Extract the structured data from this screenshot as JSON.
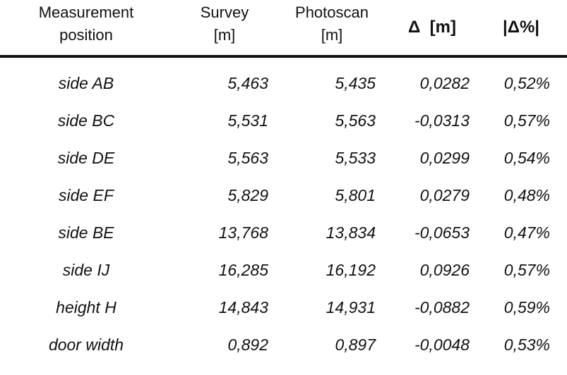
{
  "table": {
    "header": [
      [
        "Measurement",
        "position"
      ],
      [
        "Survey",
        "[m]"
      ],
      [
        "Photoscan",
        "[m]"
      ],
      [
        "Δ  [m]"
      ],
      [
        "|Δ%|"
      ]
    ],
    "rows": [
      [
        "side AB",
        "5,463",
        "5,435",
        "0,0282",
        "0,52%"
      ],
      [
        "side BC",
        "5,531",
        "5,563",
        "-0,0313",
        "0,57%"
      ],
      [
        "side DE",
        "5,563",
        "5,533",
        "0,0299",
        "0,54%"
      ],
      [
        "side EF",
        "5,829",
        "5,801",
        "0,0279",
        "0,48%"
      ],
      [
        "side BE",
        "13,768",
        "13,834",
        "-0,0653",
        "0,47%"
      ],
      [
        "side IJ",
        "16,285",
        "16,192",
        "0,0926",
        "0,57%"
      ],
      [
        "height H",
        "14,843",
        "14,931",
        "-0,0882",
        "0,59%"
      ],
      [
        "door width",
        "0,892",
        "0,897",
        "-0,0048",
        "0,53%"
      ]
    ]
  }
}
